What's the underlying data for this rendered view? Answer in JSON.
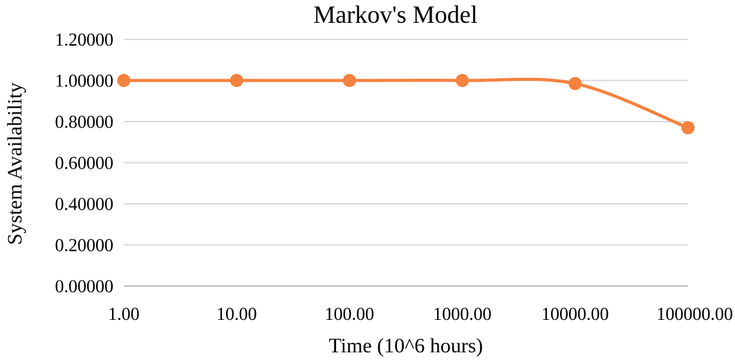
{
  "chart_data": {
    "type": "line",
    "title": "Markov's Model",
    "xlabel": "Time (10^6 hours)",
    "ylabel": "System Availability",
    "x_scale": "log",
    "x_ticks": [
      "1.00",
      "10.00",
      "100.00",
      "1000.00",
      "10000.00",
      "100000.00"
    ],
    "x_tick_values": [
      1,
      10,
      100,
      1000,
      10000,
      100000
    ],
    "y_ticks": [
      "0.00000",
      "0.20000",
      "0.40000",
      "0.60000",
      "0.80000",
      "1.00000",
      "1.20000"
    ],
    "ylim": [
      0,
      1.2
    ],
    "grid": true,
    "legend": "none",
    "series": [
      {
        "color": "#f5813e",
        "smooth": true,
        "points": [
          {
            "x": 1,
            "y": 1.0
          },
          {
            "x": 10,
            "y": 1.0
          },
          {
            "x": 100,
            "y": 1.0
          },
          {
            "x": 1000,
            "y": 1.0
          },
          {
            "x": 10000,
            "y": 0.985
          },
          {
            "x": 100000,
            "y": 0.77
          }
        ]
      }
    ]
  }
}
